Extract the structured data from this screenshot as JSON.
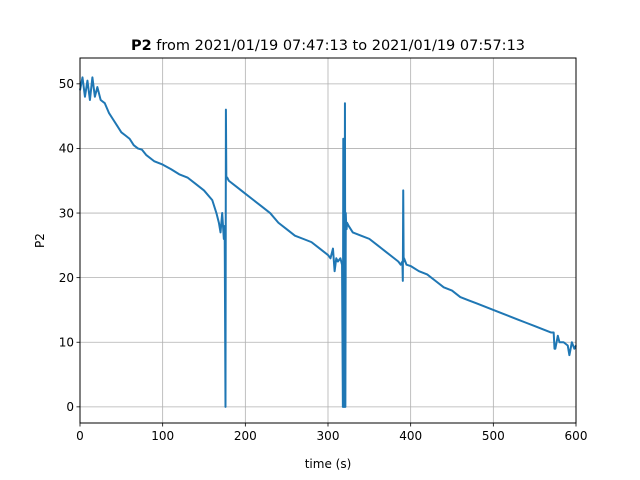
{
  "chart_data": {
    "type": "line",
    "title_bold": "P2",
    "title_rest": " from 2021/01/19 07:47:13 to 2021/01/19 07:57:13",
    "xlabel": "time (s)",
    "ylabel": "P2",
    "xlim": [
      0,
      600
    ],
    "ylim": [
      -2.5,
      54
    ],
    "xticks": [
      0,
      100,
      200,
      300,
      400,
      500,
      600
    ],
    "yticks": [
      0,
      10,
      20,
      30,
      40,
      50
    ],
    "grid": true,
    "line_color": "#1f77b4",
    "series": [
      {
        "x": [
          0,
          3,
          6,
          9,
          12,
          15,
          18,
          21,
          25,
          30,
          35,
          40,
          45,
          50,
          55,
          60,
          65,
          70,
          75,
          80,
          90,
          100,
          110,
          120,
          130,
          140,
          150,
          160,
          165,
          168,
          170,
          172,
          174,
          175,
          176,
          176.5,
          177,
          178,
          180,
          190,
          200,
          210,
          220,
          230,
          240,
          250,
          260,
          270,
          280,
          290,
          300,
          303,
          306,
          308,
          310,
          312,
          315,
          317,
          318,
          318.5,
          319,
          319.5,
          320,
          320.5,
          321,
          321.5,
          322,
          322.5,
          323,
          325,
          330,
          340,
          350,
          360,
          370,
          380,
          385,
          388,
          390,
          390.5,
          391,
          391.5,
          392,
          395,
          400,
          410,
          420,
          430,
          440,
          450,
          460,
          470,
          480,
          490,
          500,
          510,
          520,
          530,
          540,
          550,
          560,
          570,
          573,
          574,
          575,
          578,
          580,
          585,
          590,
          592,
          595,
          598,
          600
        ],
        "values": [
          49,
          51,
          48,
          50.5,
          47.5,
          51,
          48,
          49.5,
          47.5,
          47,
          45.5,
          44.5,
          43.5,
          42.5,
          42,
          41.5,
          40.5,
          40,
          39.8,
          39,
          38,
          37.5,
          36.8,
          36,
          35.5,
          34.5,
          33.5,
          32,
          30,
          28.5,
          27,
          30,
          26,
          28,
          0,
          46,
          35.5,
          35.5,
          35,
          34,
          33,
          32,
          31,
          30,
          28.5,
          27.5,
          26.5,
          26,
          25.5,
          24.5,
          23.5,
          23,
          24.5,
          21,
          23,
          22.5,
          23,
          22,
          0,
          41.5,
          0,
          34,
          0,
          47,
          0,
          30,
          28,
          27.5,
          28.5,
          28,
          27,
          26.5,
          26,
          25,
          24,
          23,
          22.5,
          22,
          22.5,
          19.5,
          33.5,
          22.5,
          23,
          22,
          21.8,
          21,
          20.5,
          19.5,
          18.5,
          18,
          17,
          16.5,
          16,
          15.5,
          15,
          14.5,
          14,
          13.5,
          13,
          12.5,
          12,
          11.5,
          11.5,
          9,
          9,
          11,
          10,
          10,
          9.5,
          8,
          10,
          9,
          9.5
        ]
      }
    ]
  }
}
